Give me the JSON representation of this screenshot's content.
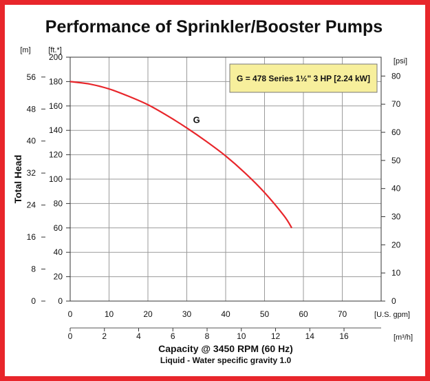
{
  "chart_data": {
    "type": "line",
    "title": "Performance of Sprinkler/Booster Pumps",
    "xlabel": "Capacity @ 3450 RPM (60 Hz)",
    "xlabel_note": "Liquid - Water specific gravity 1.0",
    "ylabel": "Total Head",
    "x_unit_primary": "[U.S. gpm]",
    "x_unit_secondary": "[m³/h]",
    "y_unit_left_outer": "[m]",
    "y_unit_left_inner": "[ft.*]",
    "y_unit_right": "[psi]",
    "xlim": [
      0,
      80
    ],
    "ylim": [
      0,
      200
    ],
    "grid": true,
    "x_ticks": [
      0,
      10,
      20,
      30,
      40,
      50,
      60,
      70
    ],
    "x2_ticks": [
      "0",
      "2",
      "4",
      "6",
      "8",
      "10",
      "12",
      "14",
      "16"
    ],
    "y_ticks_ft": [
      0,
      20,
      40,
      60,
      80,
      100,
      120,
      140,
      160,
      180,
      200
    ],
    "y_ticks_m": [
      "0",
      "8",
      "16",
      "24",
      "32",
      "40",
      "48",
      "56"
    ],
    "y_ticks_psi": [
      "0",
      "10",
      "20",
      "30",
      "40",
      "50",
      "60",
      "70",
      "80"
    ],
    "legend": {
      "text": "G = 478 Series 1½\" 3 HP [2.24 kW]",
      "position": "top-right"
    },
    "series": [
      {
        "name": "G",
        "color": "#e8262b",
        "x": [
          0,
          5,
          10,
          15,
          20,
          25,
          30,
          35,
          40,
          45,
          50,
          55,
          57
        ],
        "y": [
          180,
          178,
          174,
          168,
          161,
          152,
          142,
          131,
          119,
          105,
          89,
          70,
          60
        ]
      }
    ]
  }
}
